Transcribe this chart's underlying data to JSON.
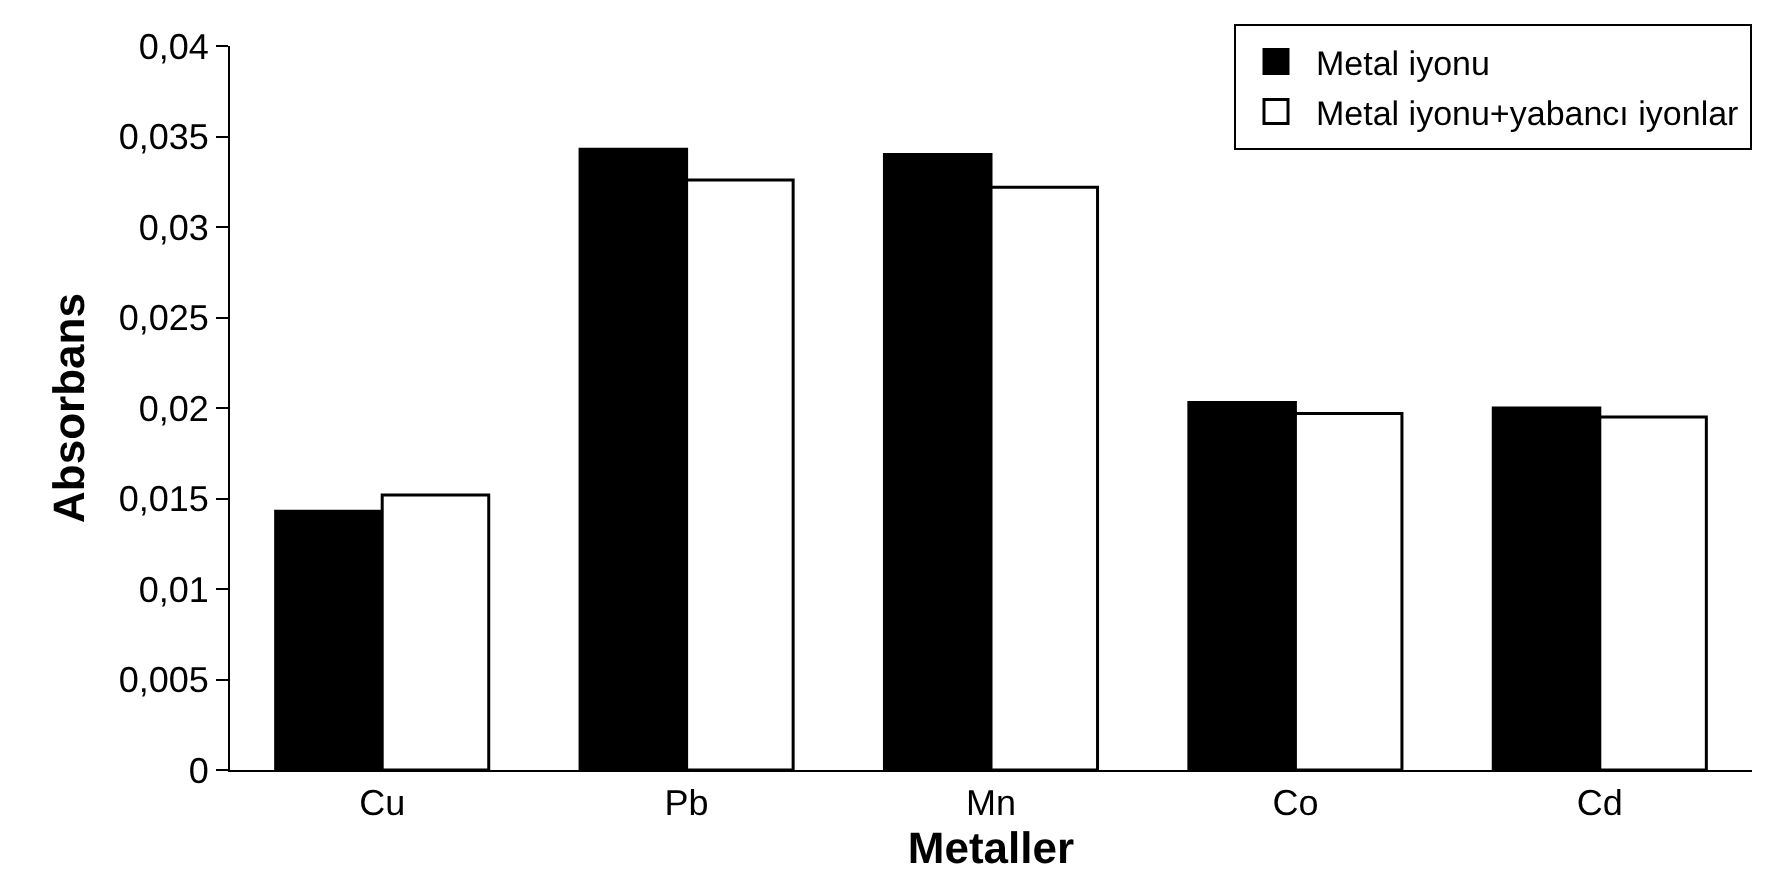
{
  "chart_data": {
    "type": "bar",
    "xlabel": "Metaller",
    "ylabel": "Absorbans",
    "categories": [
      "Cu",
      "Pb",
      "Mn",
      "Co",
      "Cd"
    ],
    "series": [
      {
        "name": "Metal iyonu",
        "color": "#000000",
        "values": [
          0.0143,
          0.0343,
          0.034,
          0.0203,
          0.02
        ]
      },
      {
        "name": "Metal iyonu+yabancı iyonlar",
        "color": "#ffffff",
        "values": [
          0.0152,
          0.0326,
          0.0322,
          0.0197,
          0.0195
        ]
      }
    ],
    "ylim": [
      0,
      0.04
    ],
    "yticks": [
      {
        "value": 0,
        "label": "0"
      },
      {
        "value": 0.005,
        "label": "0,005"
      },
      {
        "value": 0.01,
        "label": "0,01"
      },
      {
        "value": 0.015,
        "label": "0,015"
      },
      {
        "value": 0.02,
        "label": "0,02"
      },
      {
        "value": 0.025,
        "label": "0,025"
      },
      {
        "value": 0.03,
        "label": "0,03"
      },
      {
        "value": 0.035,
        "label": "0,035"
      },
      {
        "value": 0.04,
        "label": "0,04"
      }
    ],
    "grid": false,
    "legend": "top right"
  }
}
